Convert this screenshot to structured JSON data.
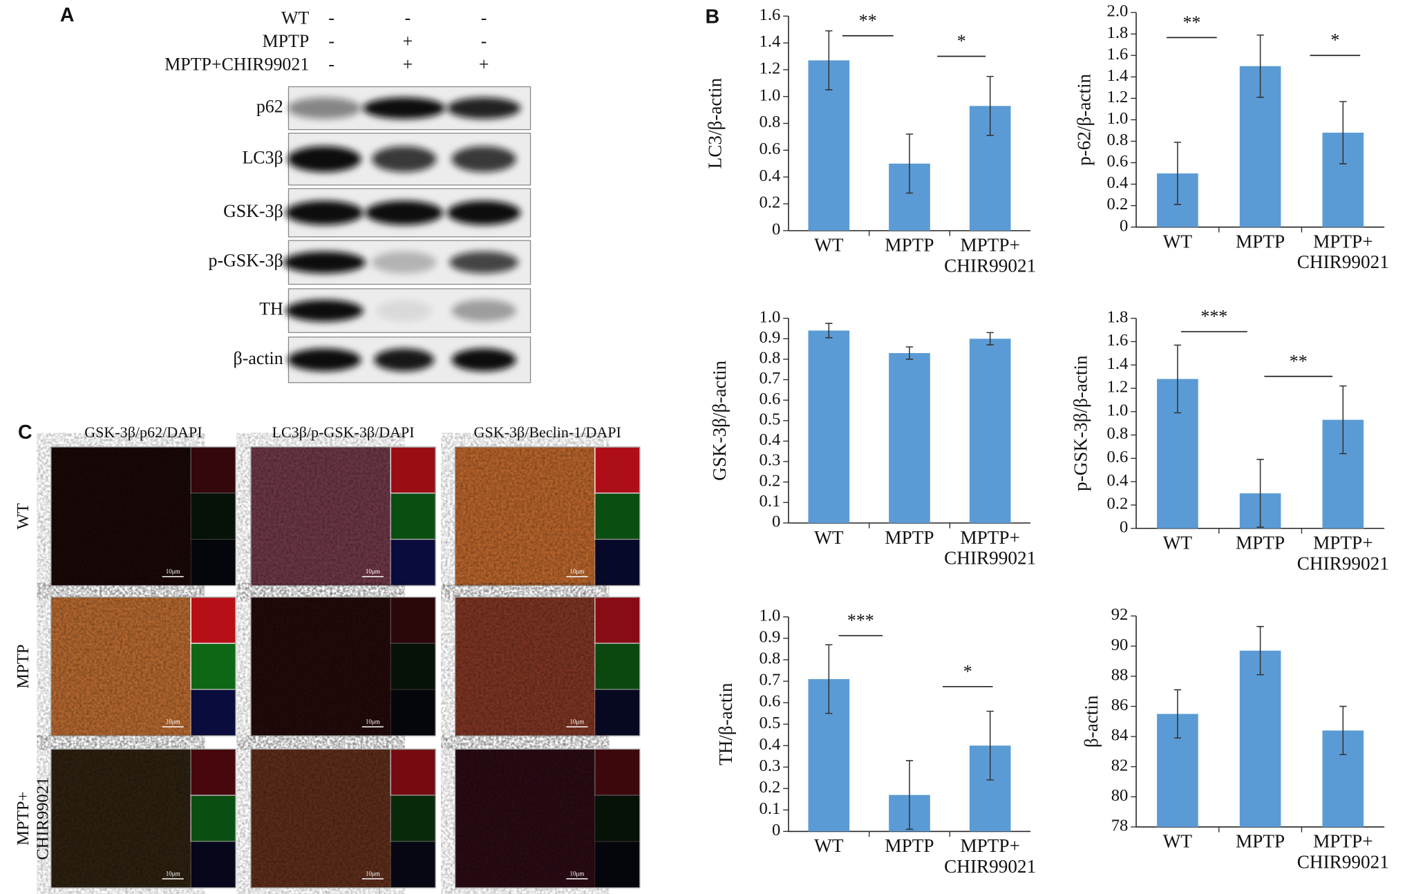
{
  "panel_a": {
    "label": "A",
    "conditions": [
      {
        "label": "WT",
        "signs": [
          "-",
          "-",
          "-"
        ]
      },
      {
        "label": "MPTP",
        "signs": [
          "-",
          "+",
          "-"
        ]
      },
      {
        "label": "MPTP+CHIR99021",
        "signs": [
          "-",
          "+",
          "+"
        ]
      }
    ],
    "bands": [
      "p62",
      "LC3β",
      "GSK-3β",
      "p-GSK-3β",
      "TH",
      "β-actin"
    ]
  },
  "panel_b": {
    "label": "B"
  },
  "panel_c": {
    "label": "C",
    "columns": [
      "GSK-3β/p62/DAPI",
      "LC3β/p-GSK-3β/DAPI",
      "GSK-3β/Beclin-1/DAPI"
    ],
    "rows": [
      "WT",
      "MPTP",
      "MPTP+\nCHIR99021"
    ],
    "scale_bar": "10μm"
  },
  "chart_data": [
    {
      "type": "bar",
      "y_label": "LC3/β-actin",
      "categories": [
        "WT",
        "MPTP",
        "MPTP+\nCHIR99021"
      ],
      "values": [
        1.27,
        0.5,
        0.93
      ],
      "errors": [
        0.22,
        0.22,
        0.22
      ],
      "color": "#5b9bd5",
      "ylim": [
        0,
        1.6
      ],
      "yticks": [
        0,
        0.2,
        0.4,
        0.6,
        0.8,
        {
          "value": 1,
          "label": "1.0"
        },
        1.2,
        1.4,
        1.6
      ],
      "annotations": [
        "**",
        "*"
      ]
    },
    {
      "type": "bar",
      "y_label": "p-62/β-actin",
      "categories": [
        "WT",
        "MPTP",
        "MPTP+\nCHIR99021"
      ],
      "values": [
        0.5,
        1.5,
        0.88
      ],
      "errors": [
        0.29,
        0.29,
        0.29
      ],
      "color": "#5b9bd5",
      "ylim": [
        0,
        2
      ],
      "yticks": [
        0,
        0.2,
        0.4,
        0.6,
        0.8,
        {
          "value": 1,
          "label": "1.0"
        },
        1.2,
        1.4,
        1.6,
        1.8,
        {
          "value": 2,
          "label": "2.0"
        }
      ],
      "annotations": [
        "**",
        "*"
      ]
    },
    {
      "type": "bar",
      "y_label": "GSK-3β/β-actin",
      "categories": [
        "WT",
        "MPTP",
        "MPTP+\nCHIR99021"
      ],
      "values": [
        0.94,
        0.83,
        0.9
      ],
      "errors": [
        0.035,
        0.03,
        0.03
      ],
      "color": "#5b9bd5",
      "ylim": [
        0,
        1
      ],
      "yticks": [
        0,
        0.1,
        0.2,
        0.3,
        0.4,
        0.5,
        0.6,
        0.7,
        0.8,
        0.9,
        {
          "value": 1,
          "label": "1.0"
        }
      ]
    },
    {
      "type": "bar",
      "y_label": "p-GSK-3β/β-actin",
      "categories": [
        "WT",
        "MPTP",
        "MPTP+\nCHIR99021"
      ],
      "values": [
        1.28,
        0.3,
        0.93
      ],
      "errors": [
        0.29,
        0.29,
        0.29
      ],
      "color": "#5b9bd5",
      "ylim": [
        0,
        1.8
      ],
      "yticks": [
        0,
        0.2,
        0.4,
        0.6,
        0.8,
        {
          "value": 1,
          "label": "1.0"
        },
        1.2,
        1.4,
        1.6,
        1.8
      ],
      "annotations": [
        "***",
        "**"
      ]
    },
    {
      "type": "bar",
      "y_label": "TH/β-actin",
      "categories": [
        "WT",
        "MPTP",
        "MPTP+\nCHIR99021"
      ],
      "values": [
        0.71,
        0.17,
        0.4
      ],
      "errors": [
        0.16,
        0.16,
        0.16
      ],
      "color": "#5b9bd5",
      "ylim": [
        0,
        1
      ],
      "yticks": [
        0,
        0.1,
        0.2,
        0.3,
        0.4,
        0.5,
        0.6,
        0.7,
        0.8,
        0.9,
        {
          "value": 1,
          "label": "1.0"
        }
      ],
      "annotations": [
        "***",
        "*"
      ]
    },
    {
      "type": "bar",
      "y_label": "β-actin",
      "categories": [
        "WT",
        "MPTP",
        "MPTP+\nCHIR99021"
      ],
      "values": [
        85.5,
        89.7,
        84.4
      ],
      "errors": [
        1.6,
        1.6,
        1.6
      ],
      "color": "#5b9bd5",
      "ylim": [
        78,
        92
      ],
      "yticks": [
        78,
        80,
        82,
        84,
        86,
        88,
        90,
        92
      ]
    }
  ]
}
